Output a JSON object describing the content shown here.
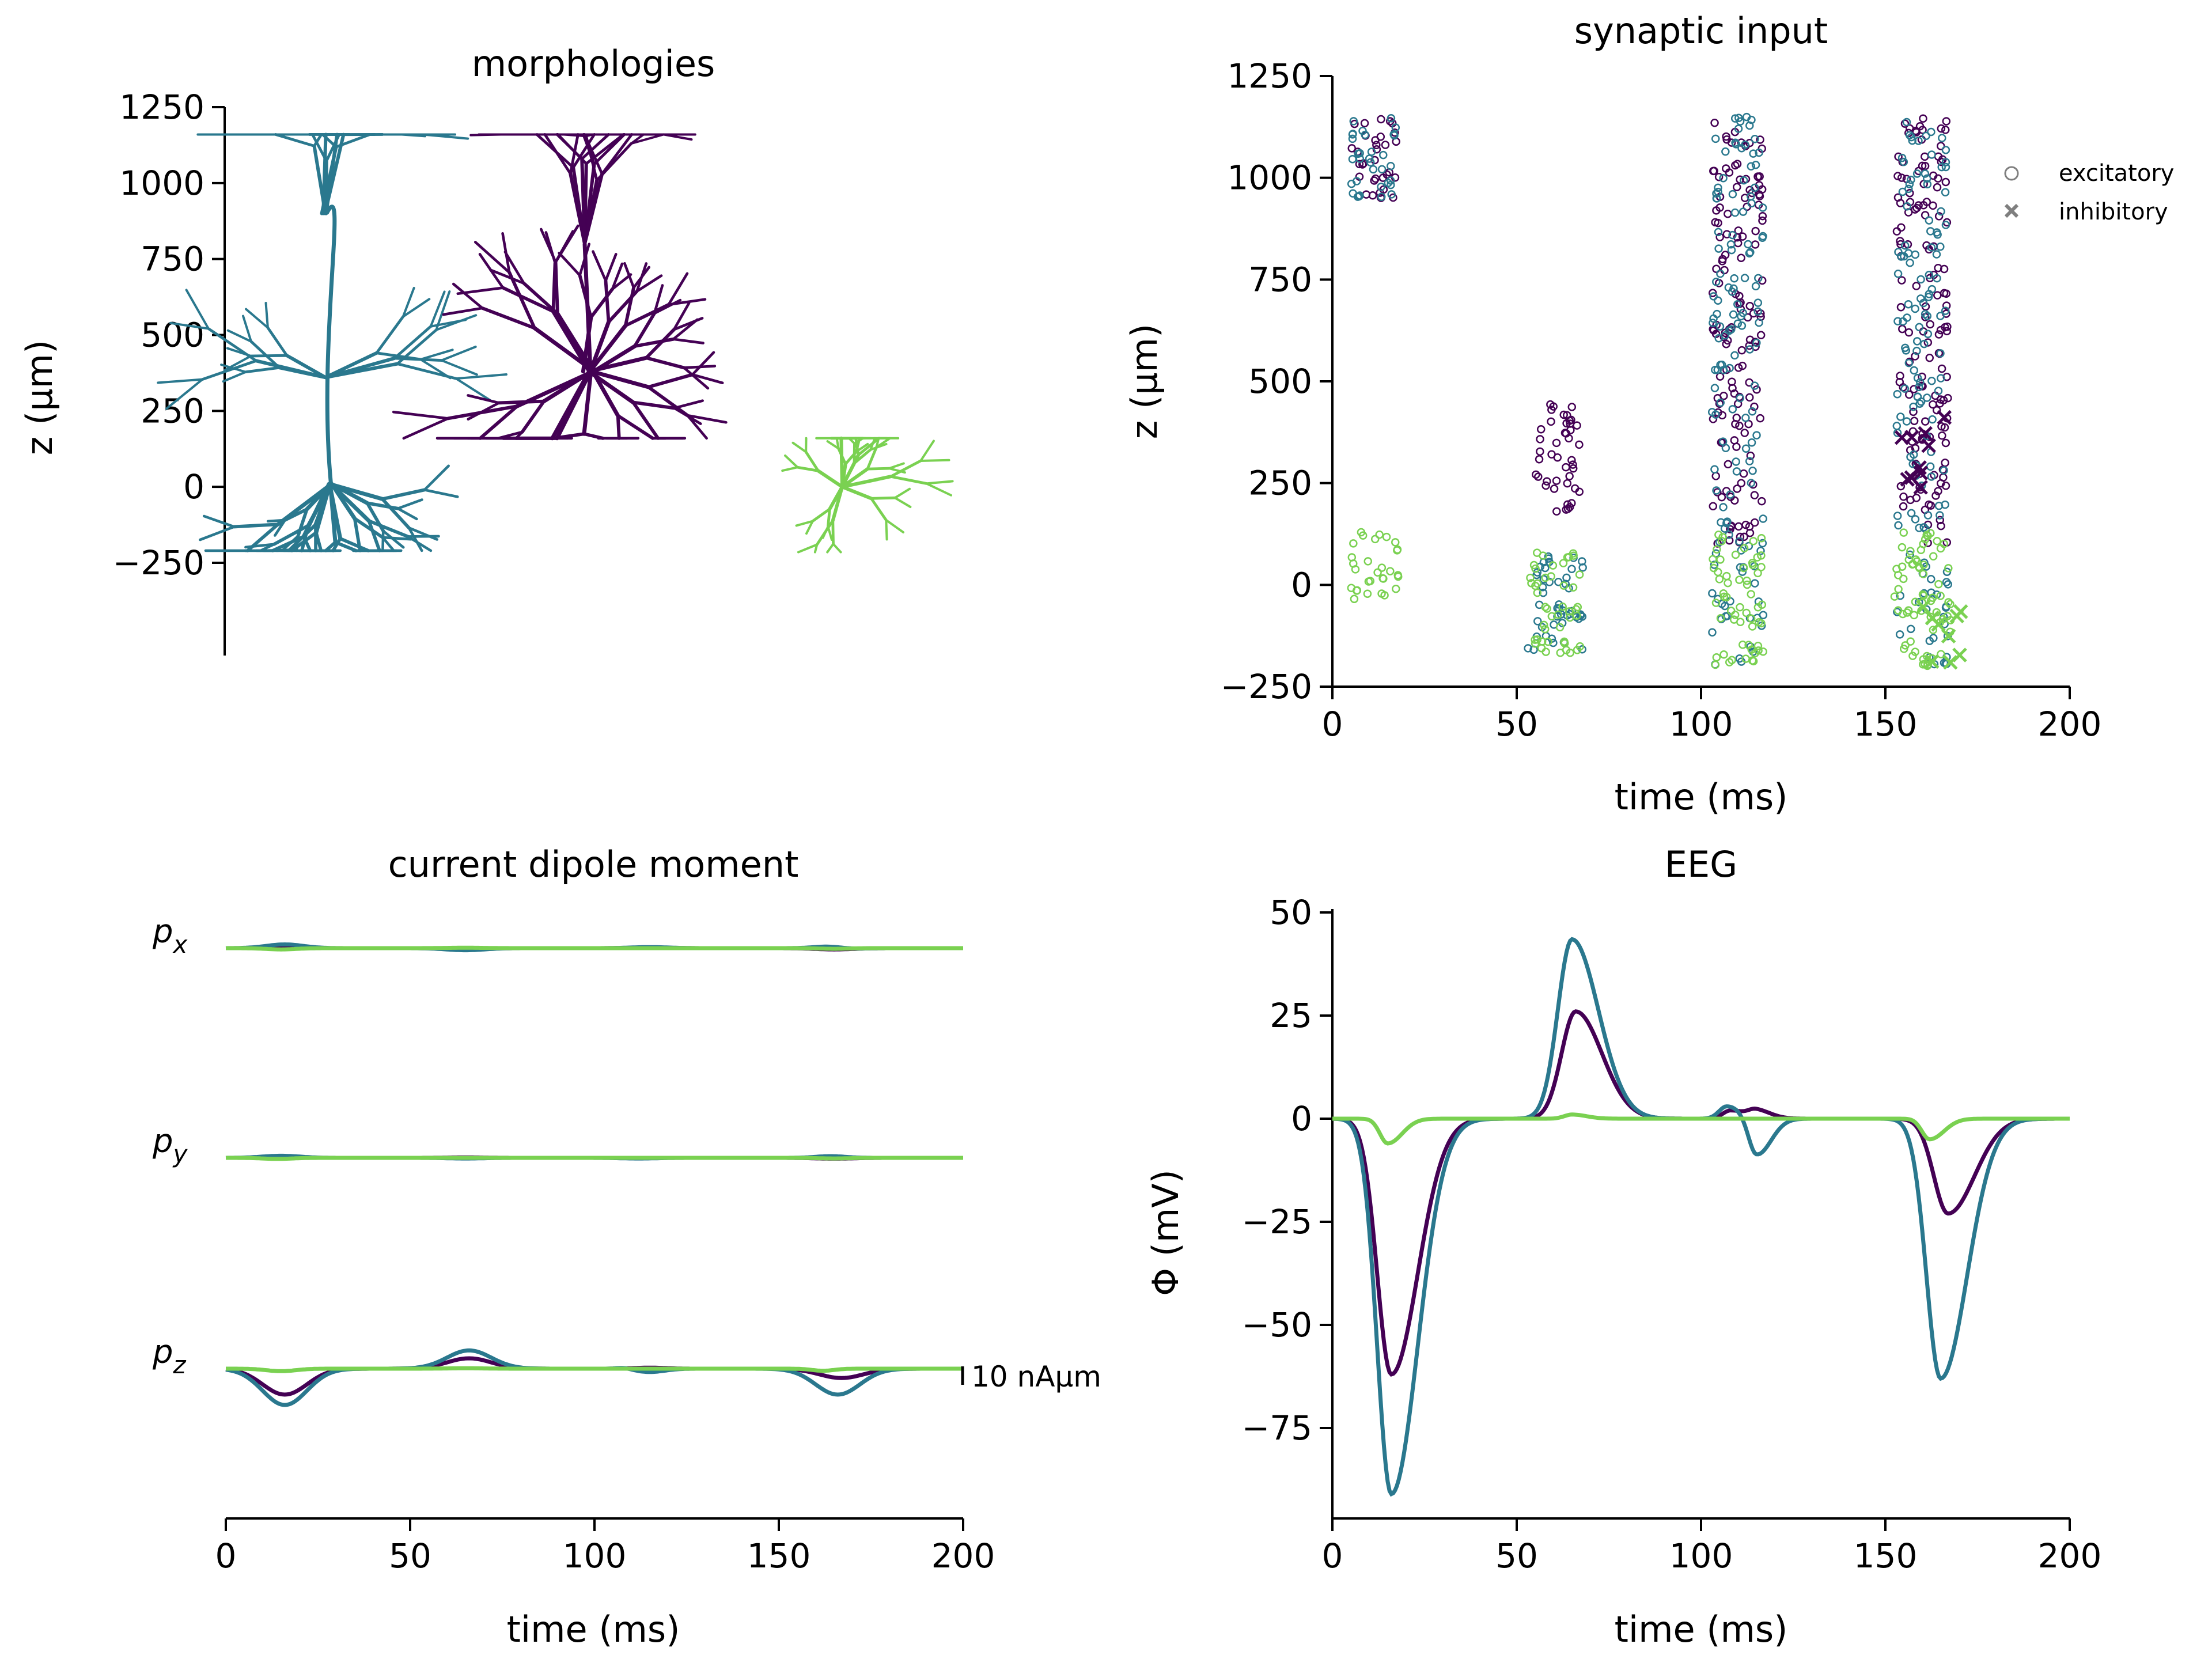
{
  "colors": {
    "purple": "#440154",
    "teal": "#2a788e",
    "green": "#7ad151",
    "legend_marker": "#7f7f7f"
  },
  "panels": {
    "morph": {
      "title": "morphologies",
      "ylabel": "z (μm)"
    },
    "syn": {
      "title": "synaptic input",
      "xlabel": "time (ms)",
      "ylabel": "z (μm)"
    },
    "dip": {
      "title": "current dipole moment",
      "xlabel": "time (ms)",
      "scale_label": "10 nAμm",
      "trace_labels": [
        "p_x",
        "p_y",
        "p_z"
      ]
    },
    "eeg": {
      "title": "EEG",
      "xlabel": "time (ms)",
      "ylabel": "Φ (mV)"
    }
  },
  "legend": {
    "excitatory": "excitatory",
    "inhibitory": "inhibitory"
  },
  "chart_data": [
    {
      "type": "line",
      "panel": "morphologies",
      "title": "morphologies",
      "ylabel": "z (μm)",
      "yticks": [
        -250,
        0,
        250,
        500,
        750,
        1000,
        1250
      ],
      "ylim": [
        -250,
        1250
      ],
      "series": [
        {
          "color": "teal",
          "soma_z": 0,
          "z_range": [
            -210,
            1160
          ],
          "x_range": [
            90,
            485
          ]
        },
        {
          "color": "purple",
          "soma_z": 380,
          "z_range": [
            160,
            1160
          ],
          "x_range": [
            720,
            1260
          ]
        },
        {
          "color": "green",
          "soma_z": 0,
          "z_range": [
            -215,
            160
          ],
          "x_range": [
            1480,
            1860
          ]
        }
      ]
    },
    {
      "type": "scatter",
      "panel": "synaptic input",
      "title": "synaptic input",
      "xlabel": "time (ms)",
      "ylabel": "z (μm)",
      "xlim": [
        0,
        200
      ],
      "ylim": [
        -250,
        1250
      ],
      "xticks": [
        0,
        50,
        100,
        150,
        200
      ],
      "yticks": [
        -250,
        0,
        250,
        500,
        750,
        1000,
        1250
      ],
      "markers": {
        "excitatory": "open circle",
        "inhibitory": "x"
      },
      "clusters": [
        {
          "color": "purple",
          "time": [
            5,
            18
          ],
          "z": [
            950,
            1150
          ],
          "kind": "excitatory"
        },
        {
          "color": "teal",
          "time": [
            5,
            18
          ],
          "z": [
            950,
            1150
          ],
          "kind": "excitatory"
        },
        {
          "color": "green",
          "time": [
            4,
            18
          ],
          "z": [
            -40,
            130
          ],
          "kind": "excitatory"
        },
        {
          "color": "purple",
          "time": [
            55,
            67
          ],
          "z": [
            180,
            470
          ],
          "kind": "excitatory"
        },
        {
          "color": "teal",
          "time": [
            53,
            68
          ],
          "z": [
            -160,
            90
          ],
          "kind": "excitatory"
        },
        {
          "color": "green",
          "time": [
            53,
            68
          ],
          "z": [
            -170,
            80
          ],
          "kind": "excitatory"
        },
        {
          "color": "purple",
          "time": [
            103,
            117
          ],
          "z": [
            100,
            1150
          ],
          "kind": "excitatory"
        },
        {
          "color": "teal",
          "time": [
            103,
            117
          ],
          "z": [
            -200,
            1150
          ],
          "kind": "excitatory"
        },
        {
          "color": "green",
          "time": [
            103,
            117
          ],
          "z": [
            -200,
            130
          ],
          "kind": "excitatory"
        },
        {
          "color": "purple",
          "time": [
            153,
            167
          ],
          "z": [
            100,
            1150
          ],
          "kind": "excitatory"
        },
        {
          "color": "teal",
          "time": [
            153,
            167
          ],
          "z": [
            -200,
            1150
          ],
          "kind": "excitatory"
        },
        {
          "color": "green",
          "time": [
            152,
            168
          ],
          "z": [
            -200,
            130
          ],
          "kind": "excitatory"
        },
        {
          "color": "purple",
          "time": [
            153,
            167
          ],
          "z": [
            220,
            430
          ],
          "kind": "inhibitory"
        },
        {
          "color": "green",
          "time": [
            160,
            171
          ],
          "z": [
            -210,
            -40
          ],
          "kind": "inhibitory"
        }
      ]
    },
    {
      "type": "line",
      "panel": "current dipole moment",
      "title": "current dipole moment",
      "xlabel": "time (ms)",
      "xlim": [
        0,
        200
      ],
      "xticks": [
        0,
        50,
        100,
        150,
        200
      ],
      "scale_bar": {
        "value": 10,
        "unit": "nAμm"
      },
      "traces": [
        {
          "component": "p_x",
          "series": [
            {
              "color": "purple",
              "bumps": [
                [
                  16,
                  0.4,
                  4
                ],
                [
                  65,
                  -0.3,
                  5
                ],
                [
                  115,
                  0.3,
                  5
                ],
                [
                  165,
                  -0.6,
                  5
                ]
              ]
            },
            {
              "color": "teal",
              "bumps": [
                [
                  16,
                  1.8,
                  5
                ],
                [
                  65,
                  -1.0,
                  5
                ],
                [
                  115,
                  0.5,
                  5
                ],
                [
                  164,
                  1.0,
                  4
                ],
                [
                  168,
                  -0.5,
                  4
                ]
              ]
            },
            {
              "color": "green",
              "bumps": [
                [
                  15,
                  -0.6,
                  4
                ],
                [
                  65,
                  0.2,
                  5
                ],
                [
                  165,
                  -0.3,
                  4
                ]
              ]
            }
          ]
        },
        {
          "component": "p_y",
          "series": [
            {
              "color": "purple",
              "bumps": [
                [
                  16,
                  0.4,
                  4
                ],
                [
                  65,
                  0.2,
                  5
                ],
                [
                  165,
                  -0.4,
                  5
                ]
              ]
            },
            {
              "color": "teal",
              "bumps": [
                [
                  15,
                  1.0,
                  5
                ],
                [
                  65,
                  -0.3,
                  5
                ],
                [
                  112,
                  -0.3,
                  5
                ],
                [
                  164,
                  0.8,
                  4
                ]
              ]
            },
            {
              "color": "green",
              "bumps": [
                [
                  14,
                  -0.5,
                  4
                ],
                [
                  165,
                  -0.3,
                  4
                ]
              ]
            }
          ]
        },
        {
          "component": "p_z",
          "series": [
            {
              "color": "purple",
              "bumps": [
                [
                  16,
                  -12.5,
                  6
                ],
                [
                  66,
                  5.0,
                  6
                ],
                [
                  115,
                  0.5,
                  4
                ],
                [
                  167,
                  -4.5,
                  6
                ]
              ]
            },
            {
              "color": "teal",
              "bumps": [
                [
                  16,
                  -17.5,
                  6
                ],
                [
                  66,
                  8.8,
                  6
                ],
                [
                  108,
                  0.6,
                  2
                ],
                [
                  115,
                  -1.6,
                  4
                ],
                [
                  166,
                  -12.5,
                  6
                ]
              ]
            },
            {
              "color": "green",
              "bumps": [
                [
                  15,
                  -1.2,
                  4
                ],
                [
                  65,
                  0.2,
                  5
                ],
                [
                  162,
                  -1.0,
                  3
                ]
              ]
            }
          ]
        }
      ]
    },
    {
      "type": "line",
      "panel": "EEG",
      "title": "EEG",
      "xlabel": "time (ms)",
      "ylabel": "Φ (mV)",
      "xlim": [
        0,
        200
      ],
      "ylim": [
        -97,
        50
      ],
      "xticks": [
        0,
        50,
        100,
        150,
        200
      ],
      "yticks": [
        -75,
        -50,
        -25,
        0,
        25,
        50
      ],
      "series": [
        {
          "color": "purple",
          "peaks": [
            [
              16,
              -62
            ],
            [
              66,
              26
            ],
            [
              108,
              2
            ],
            [
              115,
              2
            ],
            [
              167,
              -23
            ]
          ]
        },
        {
          "color": "teal",
          "peaks": [
            [
              16,
              -91
            ],
            [
              65,
              43.5
            ],
            [
              107,
              3
            ],
            [
              115,
              -9
            ],
            [
              165,
              -63
            ]
          ]
        },
        {
          "color": "green",
          "peaks": [
            [
              15,
              -6
            ],
            [
              65,
              1
            ],
            [
              162,
              -5
            ]
          ]
        }
      ]
    }
  ]
}
